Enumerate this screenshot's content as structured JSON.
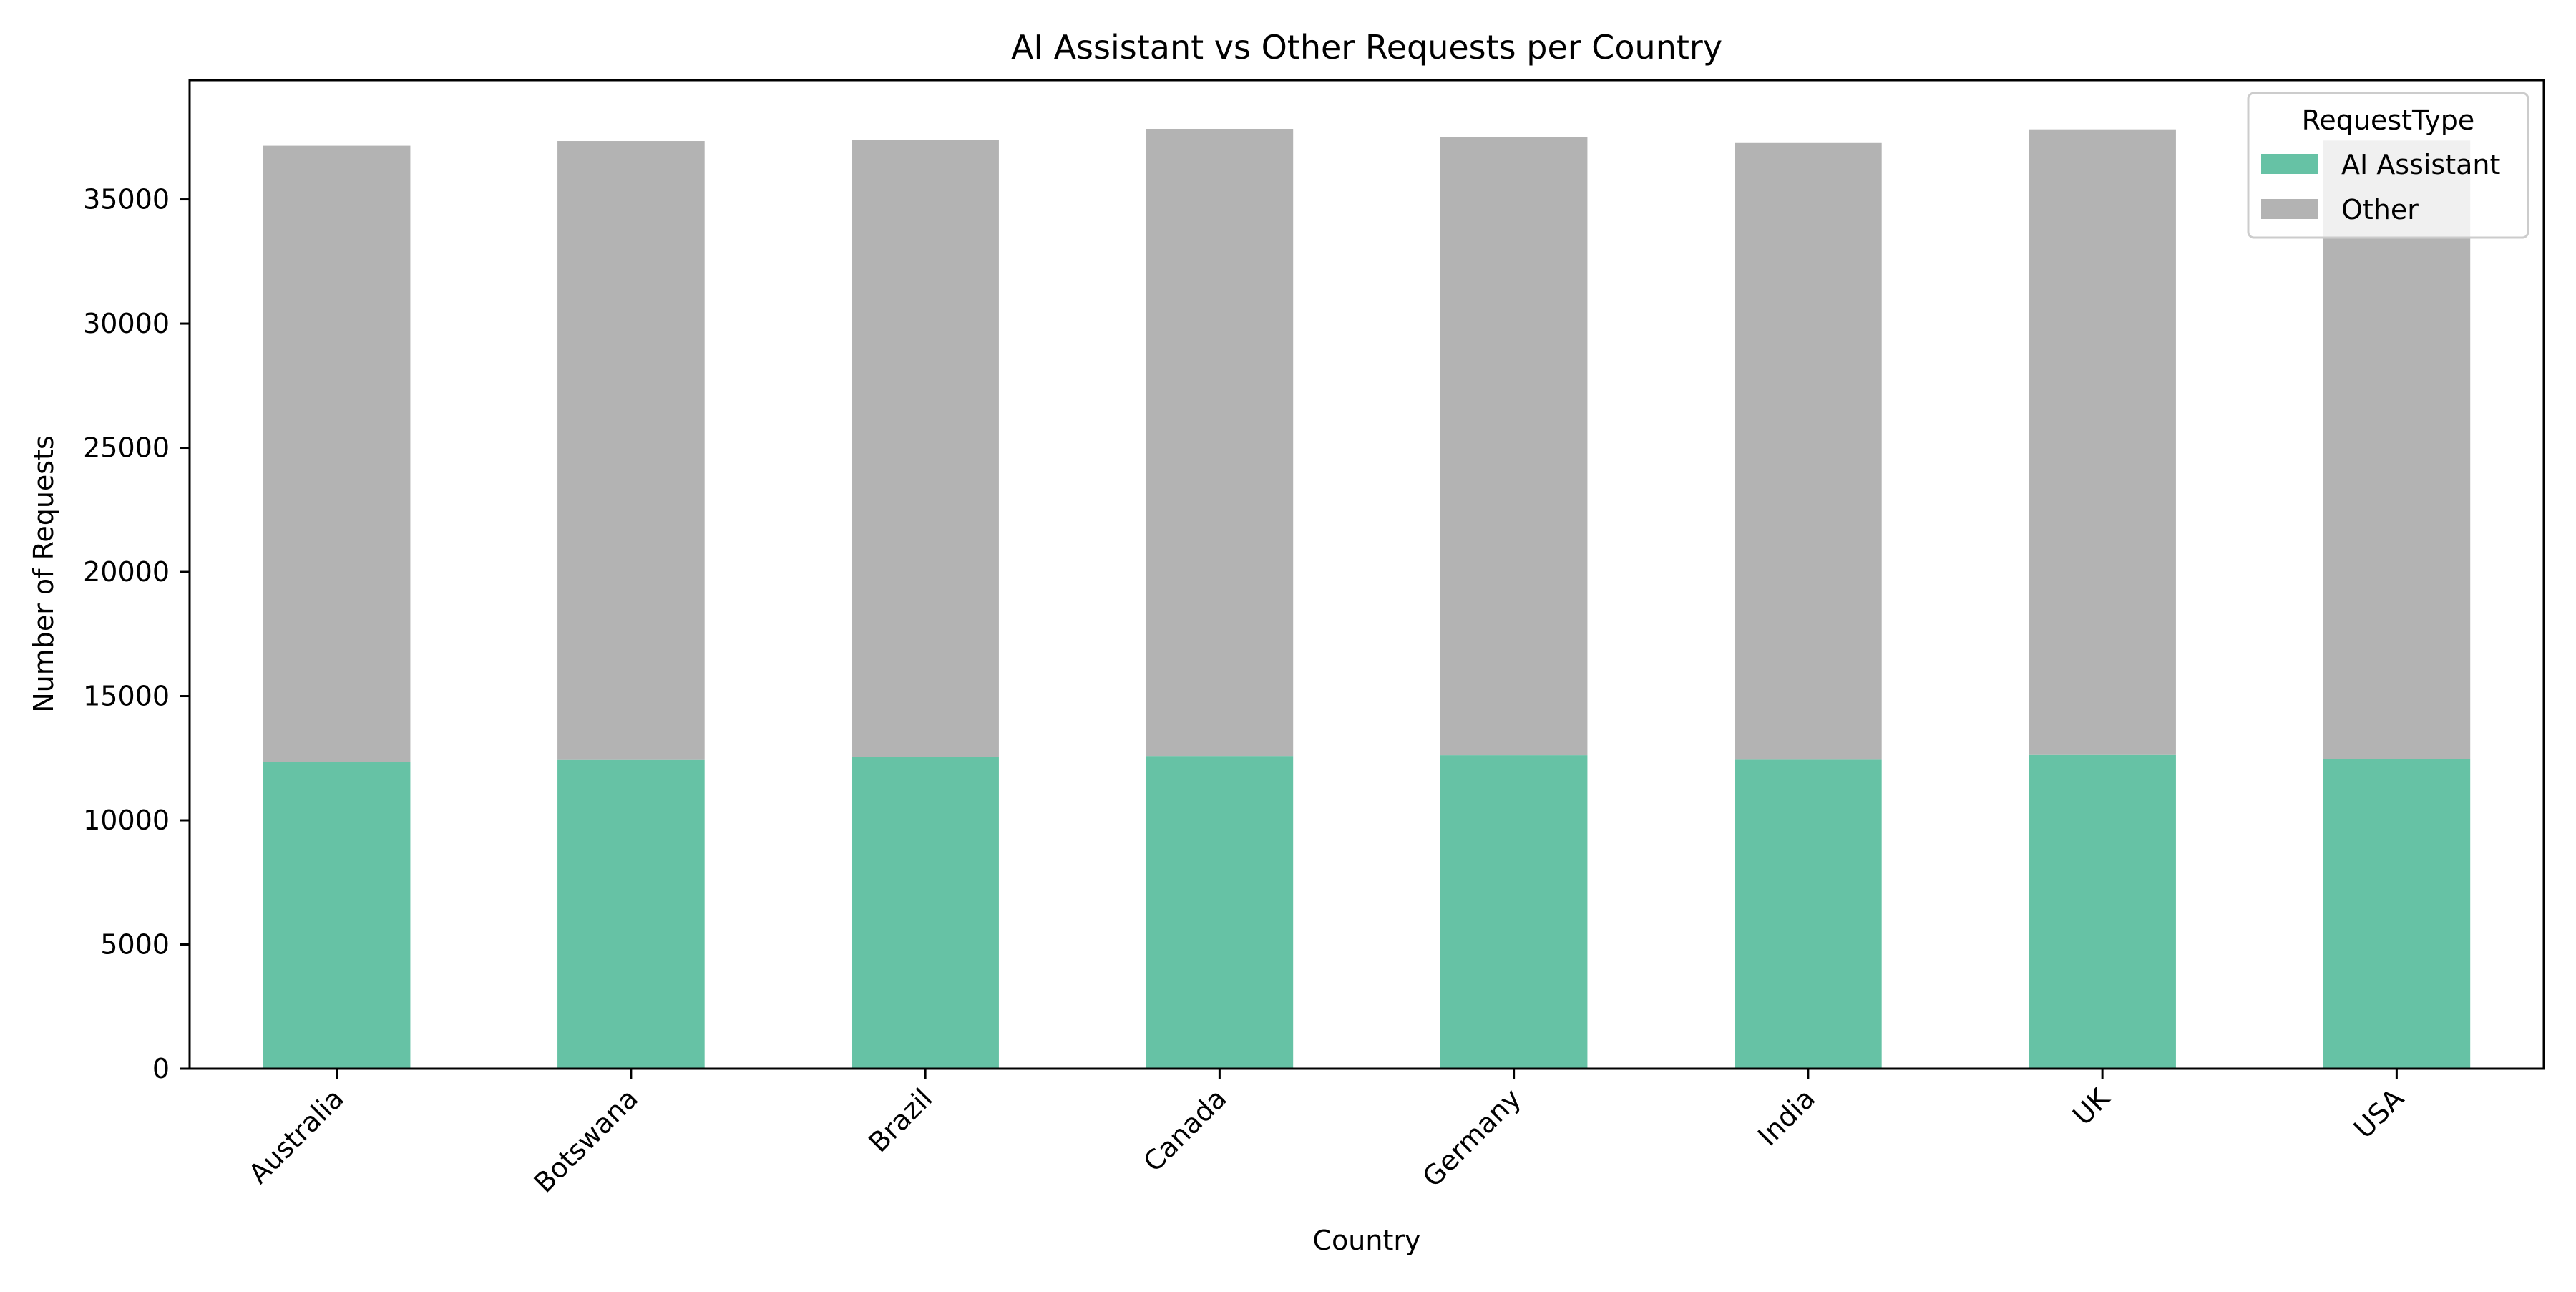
{
  "chart_data": {
    "type": "bar",
    "stacked": true,
    "title": "AI Assistant vs Other Requests per Country",
    "xlabel": "Country",
    "ylabel": "Number of Requests",
    "categories": [
      "Australia",
      "Botswana",
      "Brazil",
      "Canada",
      "Germany",
      "India",
      "UK",
      "USA"
    ],
    "series": [
      {
        "name": "AI Assistant",
        "color": "#66c2a5",
        "values": [
          12350,
          12430,
          12560,
          12590,
          12620,
          12440,
          12630,
          12470
        ]
      },
      {
        "name": "Other",
        "color": "#b3b3b3",
        "values": [
          24810,
          24920,
          24840,
          25250,
          24900,
          24830,
          25190,
          24900
        ]
      }
    ],
    "ylim": [
      0,
      39800
    ],
    "yticks": [
      0,
      5000,
      10000,
      15000,
      20000,
      25000,
      30000,
      35000
    ],
    "grid": false,
    "legend": {
      "title": "RequestType",
      "placement": "top-right"
    }
  }
}
